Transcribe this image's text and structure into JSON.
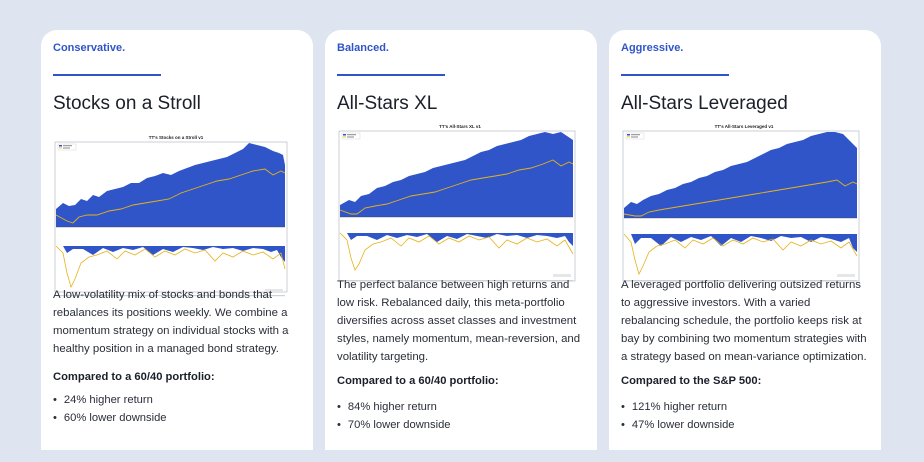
{
  "cards": [
    {
      "tag": "Conservative.",
      "title": "Stocks on a Stroll",
      "chart_title": "TT's Stocks on a Stroll v1",
      "description": "A low-volatility mix of stocks and bonds that rebalances its positions weekly. We combine a momentum strategy on individual stocks with a healthy position in a managed bond strategy.",
      "compare_heading": "Compared to a 60/40 portfolio:",
      "bullets": [
        "24% higher return",
        "60% lower downside"
      ]
    },
    {
      "tag": "Balanced.",
      "title": "All-Stars XL",
      "chart_title": "TT's All-Stars XL v1",
      "description": "The perfect balance between high returns and low risk. Rebalanced daily, this meta-portfolio diversifies across asset classes and investment styles, namely momentum, mean-reversion, and volatility targeting.",
      "compare_heading": "Compared to a 60/40 portfolio:",
      "bullets": [
        "84% higher return",
        "70% lower downside"
      ]
    },
    {
      "tag": "Aggressive.",
      "title": "All-Stars Leveraged",
      "chart_title": "TT's All-Stars Leveraged v1",
      "description": "A leveraged portfolio delivering outsized returns to aggressive investors. With a varied rebalancing schedule, the portfolio keeps risk at bay by combining two momentum strategies with a strategy based on mean-variance optimization.",
      "compare_heading": "Compared to the S&P 500:",
      "bullets": [
        "121% higher return",
        "47% lower downside"
      ]
    }
  ],
  "colors": {
    "accent": "#2f55c9",
    "equity": "#2f55c9",
    "benchmark": "#e7b21a"
  }
}
